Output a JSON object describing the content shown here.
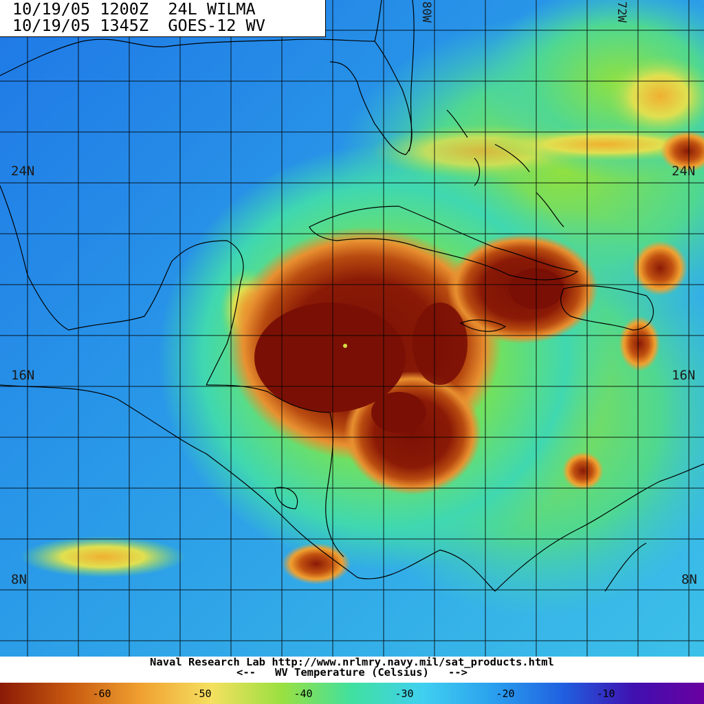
{
  "header": {
    "line1": "10/19/05 1200Z  24L WILMA",
    "line2": "10/19/05 1345Z  GOES-12 WV"
  },
  "grid": {
    "lat_labels": [
      "24N",
      "16N",
      "8N"
    ],
    "lon_labels": [
      "80W",
      "72W"
    ]
  },
  "footer": {
    "credit": "Naval Research Lab http://www.nrlmry.navy.mil/sat_products.html",
    "legend_title": "<--   WV Temperature (Celsius)   -->"
  },
  "colorbar": {
    "ticks": [
      "-60",
      "-50",
      "-40",
      "-30",
      "-20",
      "-10"
    ],
    "colors": [
      "#8a1a06",
      "#c85a10",
      "#f0a030",
      "#f5e060",
      "#9ae040",
      "#40e0a0",
      "#40d0f0",
      "#2aa0ee",
      "#2060e0",
      "#4010b0",
      "#6a00a0"
    ]
  },
  "storm": {
    "name": "WILMA",
    "id": "24L",
    "center_lat": 17.2,
    "center_lon": -84.5
  }
}
